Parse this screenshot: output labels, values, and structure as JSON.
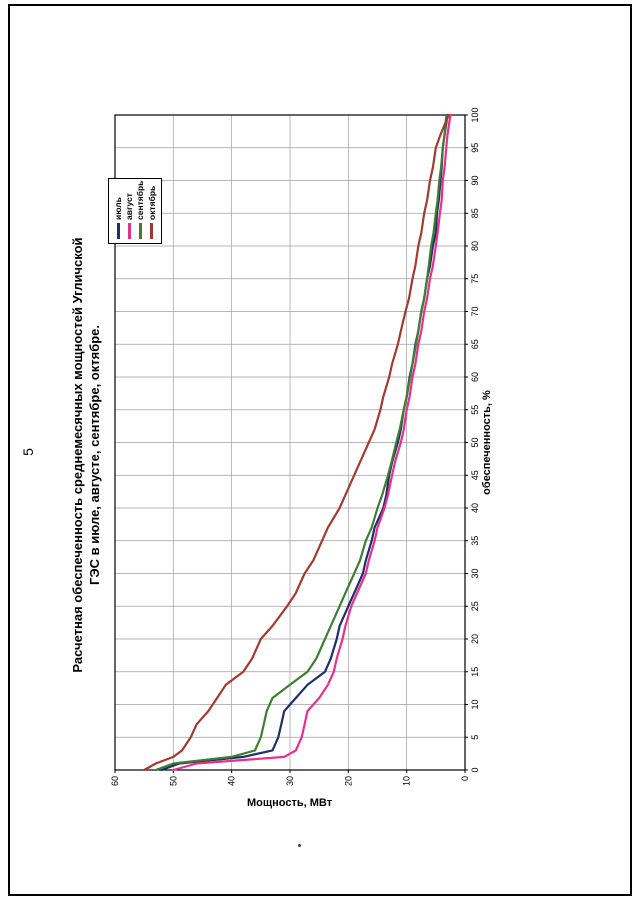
{
  "page": {
    "number": "5"
  },
  "chart_data": {
    "type": "line",
    "title": "Расчетная обеспеченность среднемесячных мощностей Угличской ГЭС в июле, августе, сентябре, октябре.",
    "xlabel": "обеспеченность, %",
    "ylabel": "Мощность, МВт",
    "xlim": [
      0,
      100
    ],
    "ylim": [
      0,
      60
    ],
    "x_ticks_step": 5,
    "y_ticks_step": 10,
    "grid": true,
    "legend_position": "top-right",
    "x": [
      0,
      1,
      2,
      3,
      5,
      7,
      9,
      11,
      13,
      15,
      17,
      20,
      22,
      25,
      27,
      30,
      32,
      35,
      37,
      40,
      42,
      45,
      47,
      50,
      52,
      55,
      57,
      60,
      62,
      65,
      67,
      70,
      72,
      75,
      77,
      80,
      82,
      85,
      87,
      90,
      92,
      95,
      97,
      100
    ],
    "series": [
      {
        "name": "июль",
        "color": "#1c2f6b",
        "values": [
          52,
          49,
          38,
          33,
          32,
          31.5,
          31,
          29,
          27,
          24,
          23,
          22,
          21.5,
          20,
          19,
          17.5,
          17,
          16,
          15.5,
          14,
          13.5,
          13,
          12.5,
          11.5,
          11,
          10.5,
          10,
          9.5,
          9,
          8.5,
          8,
          7.5,
          7,
          6.5,
          6,
          5.5,
          5,
          4.8,
          4.5,
          4.2,
          4,
          3.8,
          3.5,
          3
        ]
      },
      {
        "name": "август",
        "color": "#e8308a",
        "values": [
          50,
          46,
          31,
          29,
          28,
          27.5,
          27,
          25,
          23.5,
          22.5,
          22,
          21,
          20.5,
          19.5,
          18.5,
          17,
          16.5,
          15.5,
          15,
          13.8,
          13.2,
          12.5,
          12,
          11,
          10.5,
          10,
          9.5,
          9,
          8.5,
          8,
          7.5,
          7,
          6.5,
          6,
          5.5,
          5,
          4.7,
          4.3,
          4,
          3.8,
          3.5,
          3.2,
          3,
          2.5
        ]
      },
      {
        "name": "сентябрь",
        "color": "#3f7d33",
        "values": [
          53,
          50,
          40,
          36,
          35,
          34.5,
          34,
          33,
          30,
          27,
          25.5,
          24,
          23,
          21.5,
          20.5,
          19,
          18,
          17,
          16,
          15,
          14.2,
          13.2,
          12.6,
          11.8,
          11.2,
          10.5,
          10,
          9.4,
          9,
          8.4,
          8,
          7.5,
          7,
          6.5,
          6.2,
          5.8,
          5.4,
          5,
          4.7,
          4.4,
          4.1,
          3.8,
          3.5,
          3.2
        ]
      },
      {
        "name": "октябрь",
        "color": "#9f3b32",
        "values": [
          55,
          53,
          50,
          48.5,
          47,
          46,
          44,
          42.5,
          41,
          38,
          36.5,
          35,
          33,
          30.5,
          29,
          27.5,
          26,
          24.5,
          23.5,
          21.5,
          20.5,
          19,
          18,
          16.5,
          15.5,
          14.5,
          14,
          13,
          12.5,
          11.5,
          11,
          10.2,
          9.6,
          9,
          8.5,
          8,
          7.5,
          7,
          6.5,
          6,
          5.5,
          5,
          4.2,
          2.8
        ]
      }
    ]
  }
}
